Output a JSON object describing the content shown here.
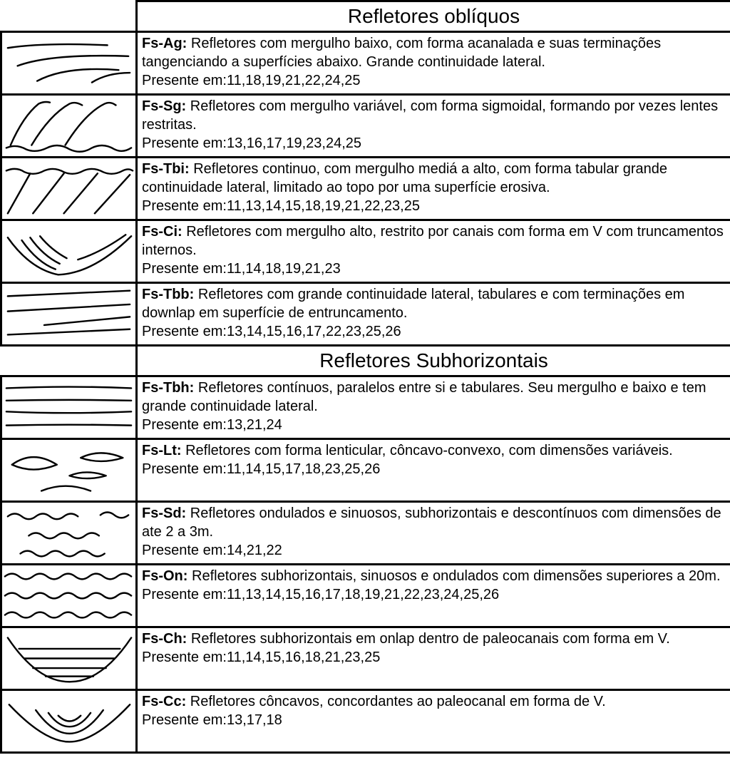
{
  "table": {
    "border_color": "#000000",
    "background_color": "#ffffff",
    "stroke_color": "#000000",
    "stroke_width": 2.5,
    "font_family": "Arial",
    "header_fontsize": 28,
    "desc_fontsize": 20,
    "sections": [
      {
        "title": "Refletores oblíquos",
        "rows": [
          {
            "code": "Fs-Ag",
            "desc": "Refletores com mergulho baixo, com forma acanalada e suas terminações tangenciando a superfícies abaixo. Grande continuidade lateral.",
            "present_label": "Presente em:",
            "present": "11,18,19,21,22,24,25",
            "svg_paths": [
              "M8 22 Q60 14 150 18",
              "M22 48 Q70 30 180 34",
              "M50 70 Q90 48 166 54",
              "M128 72 Q150 58 182 58"
            ]
          },
          {
            "code": "Fs-Sg",
            "desc": "Refletores com mergulho variável, com forma sigmoidal, formando por vezes lentes restritas.",
            "present_label": "Presente em:",
            "present": "13,16,17,19,23,24,25",
            "svg_paths": [
              "M12 72 Q30 30 52 12 Q60 8 68 10",
              "M42 72 Q68 28 96 12 Q104 8 114 14",
              "M90 72 Q118 26 146 12 Q154 8 162 14",
              "M6 76 Q20 70 34 78 Q48 84 64 76 Q80 68 96 78 Q112 86 128 76 Q144 68 160 78 Q172 84 184 76"
            ]
          },
          {
            "code": "Fs-Tbi",
            "desc": "Refletores continuo, com mergulho mediá a alto, com forma tabular grande continuidade lateral, limitado ao topo por uma superfície erosiva.",
            "present_label": "Presente em:",
            "present": "11,13,14,15,18,19,21,22,23,25",
            "svg_paths": [
              "M6 18 Q20 12 32 20 Q46 26 60 18 Q74 12 88 20 Q102 26 116 18 Q130 12 144 20 Q158 26 172 18 Q180 14 186 18",
              "M40 22 L8 80",
              "M88 22 L44 80",
              "M136 22 L88 80",
              "M182 24 L132 80"
            ]
          },
          {
            "code": "Fs-Ci",
            "desc": "Refletores com mergulho alto, restrito por canais com forma em V com truncamentos internos.",
            "present_label": "Presente em:",
            "present": "11,14,18,19,21,23",
            "svg_paths": [
              "M8 24 Q40 70 80 78 Q130 76 184 22",
              "M28 28 Q50 60 76 70",
              "M40 24 Q58 50 82 62",
              "M54 22 Q70 42 92 54",
              "M108 56 Q140 46 176 20"
            ]
          },
          {
            "code": "Fs-Tbb",
            "desc": "Refletores com grande continuidade lateral, tabulares e com termina­ções em downlap em superfície de entruncamento.",
            "present_label": "Presente em:",
            "present": "13,14,15,16,17,22,23,25,26",
            "svg_paths": [
              "M8 18 L182 10",
              "M8 40 L182 30",
              "M60 60 L182 48",
              "M8 74 L182 66"
            ]
          }
        ]
      },
      {
        "title": "Refletores Subhorizontais",
        "rows": [
          {
            "code": "Fs-Tbh",
            "desc": "Refletores contínuos, paralelos entre si e tabulares. Seu mergulho e baixo e tem grande continuidade lateral.",
            "present_label": "Presente em:",
            "present": "13,21,24",
            "svg_paths": [
              "M6 16 Q95 12 184 16",
              "M6 34 Q95 32 184 34",
              "M6 50 Q95 54 184 50",
              "M6 70 Q95 68 184 70"
            ]
          },
          {
            "code": "Fs-Lt",
            "desc": "Refletores com forma lenticular, côncavo-convexo, com dimensões variáveis.",
            "present_label": "Presente em:",
            "present": "11,14,15,17,18,23,25,26",
            "svg_paths": [
              "M14 36 Q44 14 78 36 Q44 50 14 36 Z",
              "M112 26 Q140 12 172 26 Q140 36 112 26 Z",
              "M96 52 Q120 42 148 52 Q120 60 96 52 Z",
              "M56 74 Q90 60 126 74"
            ]
          },
          {
            "code": "Fs-Sd",
            "desc": "Refletores ondulados e sinuosos, subhorizontais e descontínuos com dimensões de ate 2 a 3m.",
            "present_label": "Presente em:",
            "present": "14,21,22",
            "svg_paths": [
              "M8 20 Q18 12 28 20 Q38 28 48 20 Q58 12 68 20 Q78 28 88 20 Q98 12 108 20",
              "M140 18 Q150 10 160 18 Q170 26 180 18",
              "M38 48 Q48 40 58 48 Q68 56 78 48 Q88 40 98 48 Q108 56 118 48 Q128 40 138 48",
              "M26 74 Q36 66 46 74 Q56 82 66 74 Q76 66 86 74 Q96 82 106 74 Q116 66 126 74 Q136 82 146 74"
            ]
          },
          {
            "code": "Fs-On",
            "desc": "Refletores subhorizontais, sinuosos e ondulados com dimensões superiores a 20m.",
            "present_label": "Presente em:",
            "present": "11,13,14,15,16,17,18,19,21,22,23,24,25,26",
            "svg_paths": [
              "M4 16 Q14 8 24 16 Q34 24 44 16 Q54 8 64 16 Q74 24 84 16 Q94 8 104 16 Q114 24 124 16 Q134 8 144 16 Q154 24 164 16 Q174 8 184 16",
              "M4 44 Q14 36 24 44 Q34 52 44 44 Q54 36 64 44 Q74 52 84 44 Q94 36 104 44 Q114 52 124 44 Q134 36 144 44 Q154 52 164 44 Q174 36 184 44",
              "M4 72 Q14 64 24 72 Q34 80 44 72 Q54 64 64 72 Q74 80 84 72 Q94 64 104 72 Q114 80 124 72 Q134 64 144 72 Q154 80 164 72 Q174 64 184 72"
            ]
          },
          {
            "code": "Fs-Ch",
            "desc": "Refletores subhorizontais em onlap dentro de paleocanais com forma em V.",
            "present_label": "Presente em:",
            "present": "11,14,15,16,18,21,23,25",
            "svg_paths": [
              "M8 14 Q50 78 96 78 Q142 78 184 14",
              "M24 30 L168 30",
              "M32 44 L160 44",
              "M44 58 L148 58",
              "M62 70 L130 70"
            ]
          },
          {
            "code": "Fs-Cc",
            "desc": "Refletores côncavos, concordantes ao paleocanal em forma de V.",
            "present_label": "Presente em:",
            "present": "13,17,18",
            "svg_paths": [
              "M10 20 Q60 74 96 74 Q132 74 182 20",
              "M48 28 Q72 62 96 62 Q120 62 144 28",
              "M66 32 Q80 52 96 52 Q112 52 126 32",
              "M80 36 Q88 44 96 44 Q104 44 112 36"
            ]
          }
        ]
      }
    ]
  }
}
